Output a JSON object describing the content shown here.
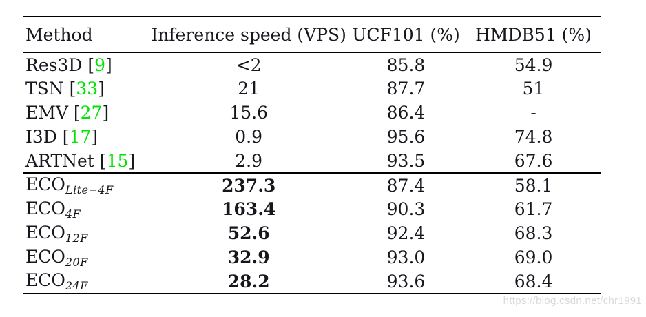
{
  "colors": {
    "text": "#16161d",
    "rule": "#000000",
    "citation_green": "#00e400",
    "watermark_gray": "#d9d9d9"
  },
  "watermark": {
    "text": "https://blog.csdn.net/chr1991"
  },
  "table": {
    "headers": [
      {
        "label": "Method"
      },
      {
        "label": "Inference speed (VPS)"
      },
      {
        "label": "UCF101 (%)"
      },
      {
        "label": "HMDB51 (%)"
      }
    ],
    "rows": [
      {
        "method": "Res3D",
        "sub": "",
        "cite": "9",
        "speed": "<2",
        "bold_speed": false,
        "ucf101": "85.8",
        "hmdb51": "54.9",
        "group_start": false
      },
      {
        "method": "TSN",
        "sub": "",
        "cite": "33",
        "speed": "21",
        "bold_speed": false,
        "ucf101": "87.7",
        "hmdb51": "51",
        "group_start": false
      },
      {
        "method": "EMV",
        "sub": "",
        "cite": "27",
        "speed": "15.6",
        "bold_speed": false,
        "ucf101": "86.4",
        "hmdb51": "-",
        "group_start": false
      },
      {
        "method": "I3D",
        "sub": "",
        "cite": "17",
        "speed": "0.9",
        "bold_speed": false,
        "ucf101": "95.6",
        "hmdb51": "74.8",
        "group_start": false
      },
      {
        "method": "ARTNet",
        "sub": "",
        "cite": "15",
        "speed": "2.9",
        "bold_speed": false,
        "ucf101": "93.5",
        "hmdb51": "67.6",
        "group_start": false
      },
      {
        "method": "ECO",
        "sub": "Lite−4F",
        "cite": "",
        "speed": "237.3",
        "bold_speed": true,
        "ucf101": "87.4",
        "hmdb51": "58.1",
        "group_start": true
      },
      {
        "method": "ECO",
        "sub": "4F",
        "cite": "",
        "speed": "163.4",
        "bold_speed": true,
        "ucf101": "90.3",
        "hmdb51": "61.7",
        "group_start": false
      },
      {
        "method": "ECO",
        "sub": "12F",
        "cite": "",
        "speed": "52.6",
        "bold_speed": true,
        "ucf101": "92.4",
        "hmdb51": "68.3",
        "group_start": false
      },
      {
        "method": "ECO",
        "sub": "20F",
        "cite": "",
        "speed": "32.9",
        "bold_speed": true,
        "ucf101": "93.0",
        "hmdb51": "69.0",
        "group_start": false
      },
      {
        "method": "ECO",
        "sub": "24F",
        "cite": "",
        "speed": "28.2",
        "bold_speed": true,
        "ucf101": "93.6",
        "hmdb51": "68.4",
        "group_start": false
      }
    ]
  }
}
